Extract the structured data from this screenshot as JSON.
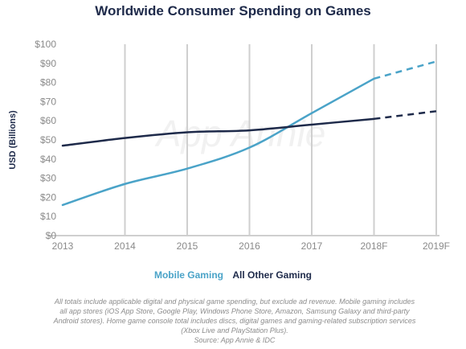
{
  "chart_data": {
    "type": "line",
    "title": "Worldwide Consumer Spending on Games",
    "ylabel": "USD (Billions)",
    "xlabel": "",
    "categories": [
      "2013",
      "2014",
      "2015",
      "2016",
      "2017",
      "2018F",
      "2019F"
    ],
    "y_ticks": [
      "$0",
      "$10",
      "$20",
      "$30",
      "$40",
      "$50",
      "$60",
      "$70",
      "$80",
      "$90",
      "$100"
    ],
    "ylim": [
      0,
      100
    ],
    "forecast_from": "2018F",
    "grid": "vertical",
    "watermark": "App Annie",
    "series": [
      {
        "name": "Mobile Gaming",
        "color": "#4aa3c8",
        "values": [
          16,
          27,
          35,
          46,
          64,
          82,
          91
        ]
      },
      {
        "name": "All Other Gaming",
        "color": "#1e2a4a",
        "values": [
          47,
          51,
          54,
          55,
          58,
          61,
          65
        ]
      }
    ]
  },
  "footnote": {
    "lines": [
      "All totals include applicable digital and physical game spending, but exclude ad revenue. Mobile gaming includes",
      "all app stores (iOS App Store, Google Play, Windows Phone Store, Amazon, Samsung Galaxy and third-party",
      "Android stores). Home game console total includes discs, digital games and gaming-related subscription services",
      "(Xbox Live and PlayStation Plus).",
      "Source: App Annie & IDC"
    ]
  }
}
